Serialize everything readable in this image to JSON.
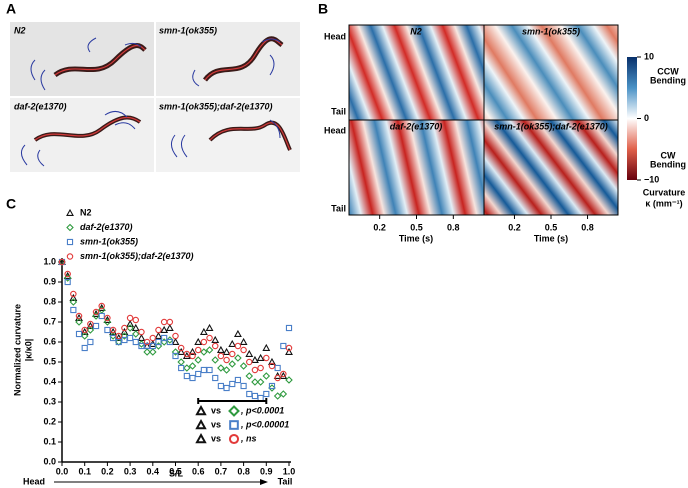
{
  "panel_letters": [
    "A",
    "B",
    "C"
  ],
  "panel_a": {
    "labels": [
      "N2",
      "smn-1(ok355)",
      "daf-2(e1370)",
      "smn-1(ok355);daf-2(e1370)"
    ]
  },
  "panel_b": {
    "labels": [
      "N2",
      "smn-1(ok355)",
      "daf-2(e1370)",
      "smn-1(ok355);daf-2(e1370)"
    ],
    "y_labels": [
      "Head",
      "Tail"
    ],
    "xlabel": "Time (s)",
    "xlim": [
      -0.05,
      1.05
    ],
    "xticks": [
      0.2,
      0.5,
      0.8
    ],
    "colorbar": {
      "lim": [
        -10,
        10
      ],
      "ticks": [
        10,
        0,
        {
          "value": -10,
          "label": "−10"
        }
      ],
      "top_label": [
        "CCW",
        "Bending"
      ],
      "bottom_label": [
        "CW",
        "Bending"
      ],
      "title": [
        "Curvature",
        "κ (mm⁻¹)"
      ]
    }
  },
  "chart_data": {
    "type": "scatter",
    "ylabel": [
      "Normalized curvature",
      "|κ/κ0|"
    ],
    "xlabel": "S/L",
    "axis_start": "Head",
    "axis_end": "Tail",
    "xlim": [
      0,
      1
    ],
    "ylim": [
      0,
      1
    ],
    "xticks": [
      {
        "value": 0,
        "label": "0.0"
      },
      0.1,
      0.2,
      0.3,
      0.4,
      0.5,
      0.6,
      0.7,
      0.8,
      0.9,
      {
        "value": 1,
        "label": "1.0"
      }
    ],
    "yticks": [
      {
        "value": 0,
        "label": "0.0"
      },
      0.1,
      0.2,
      0.3,
      0.4,
      0.5,
      0.6,
      0.7,
      0.8,
      0.9,
      {
        "value": 1,
        "label": "1.0"
      }
    ],
    "x": [
      0,
      0.025,
      0.05,
      0.075,
      0.1,
      0.125,
      0.15,
      0.175,
      0.2,
      0.225,
      0.25,
      0.275,
      0.3,
      0.325,
      0.35,
      0.375,
      0.4,
      0.425,
      0.45,
      0.475,
      0.5,
      0.525,
      0.55,
      0.575,
      0.6,
      0.625,
      0.65,
      0.675,
      0.7,
      0.725,
      0.75,
      0.775,
      0.8,
      0.825,
      0.85,
      0.875,
      0.9,
      0.925,
      0.95,
      0.975,
      1.0
    ],
    "series": [
      {
        "name": "N2",
        "color": "#111111",
        "marker": "triangle",
        "values": [
          1.0,
          0.93,
          0.82,
          0.72,
          0.65,
          0.68,
          0.74,
          0.77,
          0.71,
          0.65,
          0.62,
          0.65,
          0.69,
          0.67,
          0.62,
          0.58,
          0.59,
          0.63,
          0.66,
          0.67,
          0.6,
          0.55,
          0.53,
          0.55,
          0.6,
          0.65,
          0.67,
          0.61,
          0.56,
          0.55,
          0.59,
          0.64,
          0.6,
          0.54,
          0.51,
          0.52,
          0.57,
          0.5,
          0.43,
          0.43,
          0.55
        ]
      },
      {
        "name": "daf-2(e1370)",
        "color": "#2e9a3e",
        "marker": "diamond",
        "values": [
          1.0,
          0.92,
          0.8,
          0.7,
          0.63,
          0.66,
          0.73,
          0.76,
          0.7,
          0.63,
          0.6,
          0.63,
          0.67,
          0.64,
          0.59,
          0.55,
          0.55,
          0.58,
          0.6,
          0.61,
          0.55,
          0.5,
          0.47,
          0.48,
          0.51,
          0.55,
          0.56,
          0.51,
          0.47,
          0.46,
          0.49,
          0.52,
          0.48,
          0.43,
          0.4,
          0.4,
          0.43,
          0.37,
          0.33,
          0.34,
          0.41
        ]
      },
      {
        "name": "smn-1(ok355)",
        "color": "#4a7fc8",
        "marker": "square",
        "values": [
          1.0,
          0.9,
          0.76,
          0.64,
          0.57,
          0.6,
          0.68,
          0.73,
          0.66,
          0.62,
          0.6,
          0.61,
          0.62,
          0.6,
          0.58,
          0.58,
          0.58,
          0.6,
          0.62,
          0.6,
          0.53,
          0.47,
          0.43,
          0.42,
          0.44,
          0.46,
          0.46,
          0.42,
          0.38,
          0.37,
          0.39,
          0.41,
          0.38,
          0.34,
          0.33,
          0.32,
          0.34,
          0.38,
          0.47,
          0.58,
          0.67
        ]
      },
      {
        "name": "smn-1(ok355);daf-2(e1370)",
        "color": "#e23a3a",
        "marker": "circle",
        "values": [
          1.0,
          0.94,
          0.84,
          0.73,
          0.66,
          0.69,
          0.75,
          0.78,
          0.72,
          0.66,
          0.63,
          0.67,
          0.72,
          0.71,
          0.65,
          0.6,
          0.62,
          0.66,
          0.7,
          0.7,
          0.63,
          0.57,
          0.54,
          0.53,
          0.56,
          0.6,
          0.62,
          0.58,
          0.53,
          0.51,
          0.54,
          0.58,
          0.56,
          0.5,
          0.46,
          0.47,
          0.52,
          0.48,
          0.42,
          0.44,
          0.57
        ]
      }
    ],
    "stats": {
      "range": [
        0.6,
        0.9
      ],
      "vs": "vs",
      "rows": [
        ", p<0.0001",
        ", p<0.00001",
        ", ns"
      ]
    }
  }
}
